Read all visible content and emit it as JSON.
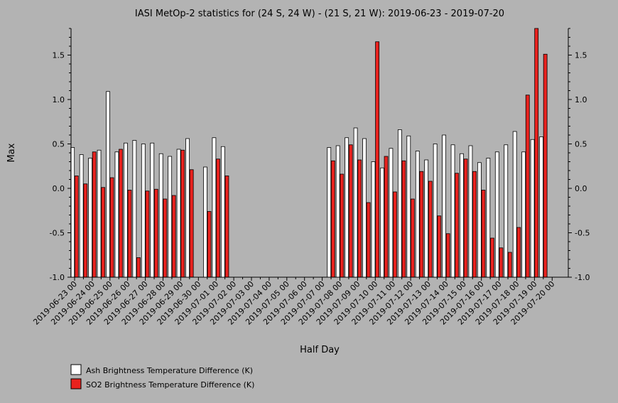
{
  "chart_data": {
    "type": "bar",
    "title": "IASI MetOp-2 statistics for (24 S, 24 W) - (21 S, 21 W): 2019-06-23 - 2019-07-20",
    "xlabel": "Half Day",
    "ylabel": "Max",
    "ylim": [
      -1.0,
      1.8
    ],
    "yticks": [
      -1.0,
      -0.5,
      0.0,
      0.5,
      1.0,
      1.5
    ],
    "ytick_labels": [
      "-1.0",
      "-0.5",
      "0.0",
      "0.5",
      "1.0",
      "1.5"
    ],
    "grid": false,
    "legend_position": "bottom-left",
    "categories": [
      "2019-06-23 00",
      "2019-06-23 12",
      "2019-06-24 00",
      "2019-06-24 12",
      "2019-06-25 00",
      "2019-06-25 12",
      "2019-06-26 00",
      "2019-06-26 12",
      "2019-06-27 00",
      "2019-06-27 12",
      "2019-06-28 00",
      "2019-06-28 12",
      "2019-06-29 00",
      "2019-06-29 12",
      "2019-06-30 00",
      "2019-06-30 12",
      "2019-07-01 00",
      "2019-07-01 12",
      "2019-07-02 00",
      "2019-07-02 12",
      "2019-07-03 00",
      "2019-07-03 12",
      "2019-07-04 00",
      "2019-07-04 12",
      "2019-07-05 00",
      "2019-07-05 12",
      "2019-07-06 00",
      "2019-07-06 12",
      "2019-07-07 00",
      "2019-07-07 12",
      "2019-07-08 00",
      "2019-07-08 12",
      "2019-07-09 00",
      "2019-07-09 12",
      "2019-07-10 00",
      "2019-07-10 12",
      "2019-07-11 00",
      "2019-07-11 12",
      "2019-07-12 00",
      "2019-07-12 12",
      "2019-07-13 00",
      "2019-07-13 12",
      "2019-07-14 00",
      "2019-07-14 12",
      "2019-07-15 00",
      "2019-07-15 12",
      "2019-07-16 00",
      "2019-07-16 12",
      "2019-07-17 00",
      "2019-07-17 12",
      "2019-07-18 00",
      "2019-07-18 12",
      "2019-07-19 00",
      "2019-07-19 12",
      "2019-07-20 00"
    ],
    "tick_labels": [
      "2019-06-23 00",
      "2019-06-24 00",
      "2019-06-25 00",
      "2019-06-26 00",
      "2019-06-27 00",
      "2019-06-28 00",
      "2019-06-29 00",
      "2019-06-30 00",
      "2019-07-01 00",
      "2019-07-02 00",
      "2019-07-03 00",
      "2019-07-04 00",
      "2019-07-05 00",
      "2019-07-06 00",
      "2019-07-07 00",
      "2019-07-08 00",
      "2019-07-09 00",
      "2019-07-10 00",
      "2019-07-11 00",
      "2019-07-12 00",
      "2019-07-13 00",
      "2019-07-14 00",
      "2019-07-15 00",
      "2019-07-16 00",
      "2019-07-17 00",
      "2019-07-18 00",
      "2019-07-19 00",
      "2019-07-20 00"
    ],
    "series": [
      {
        "name": "Ash Brightness Temperature Difference (K)",
        "color": "#ffffff",
        "values": [
          0.46,
          0.38,
          0.34,
          0.43,
          1.09,
          0.41,
          0.51,
          0.54,
          0.5,
          0.51,
          0.39,
          0.36,
          0.44,
          0.56,
          null,
          0.24,
          0.57,
          0.47,
          null,
          null,
          null,
          null,
          null,
          null,
          null,
          null,
          null,
          null,
          null,
          0.46,
          0.48,
          0.57,
          0.68,
          0.56,
          0.3,
          0.23,
          0.45,
          0.66,
          0.59,
          0.42,
          0.32,
          0.5,
          0.6,
          0.49,
          0.39,
          0.48,
          0.29,
          0.34,
          0.41,
          0.49,
          0.64,
          0.41,
          0.55,
          0.58,
          null
        ]
      },
      {
        "name": "SO2 Brightness Temperature Difference (K)",
        "color": "#e8221e",
        "values": [
          0.14,
          0.05,
          0.41,
          0.01,
          0.12,
          0.44,
          -0.02,
          -0.78,
          -0.03,
          -0.01,
          -0.12,
          -0.08,
          0.43,
          0.21,
          null,
          -0.26,
          0.33,
          0.14,
          null,
          null,
          null,
          null,
          null,
          null,
          null,
          null,
          null,
          null,
          null,
          0.31,
          0.16,
          0.49,
          0.32,
          -0.16,
          1.65,
          0.36,
          -0.04,
          0.31,
          -0.12,
          0.19,
          0.08,
          -0.31,
          -0.51,
          0.17,
          0.33,
          0.19,
          -0.02,
          -0.56,
          -0.67,
          -0.72,
          -0.44,
          1.05,
          1.81,
          1.51,
          null
        ]
      }
    ]
  }
}
